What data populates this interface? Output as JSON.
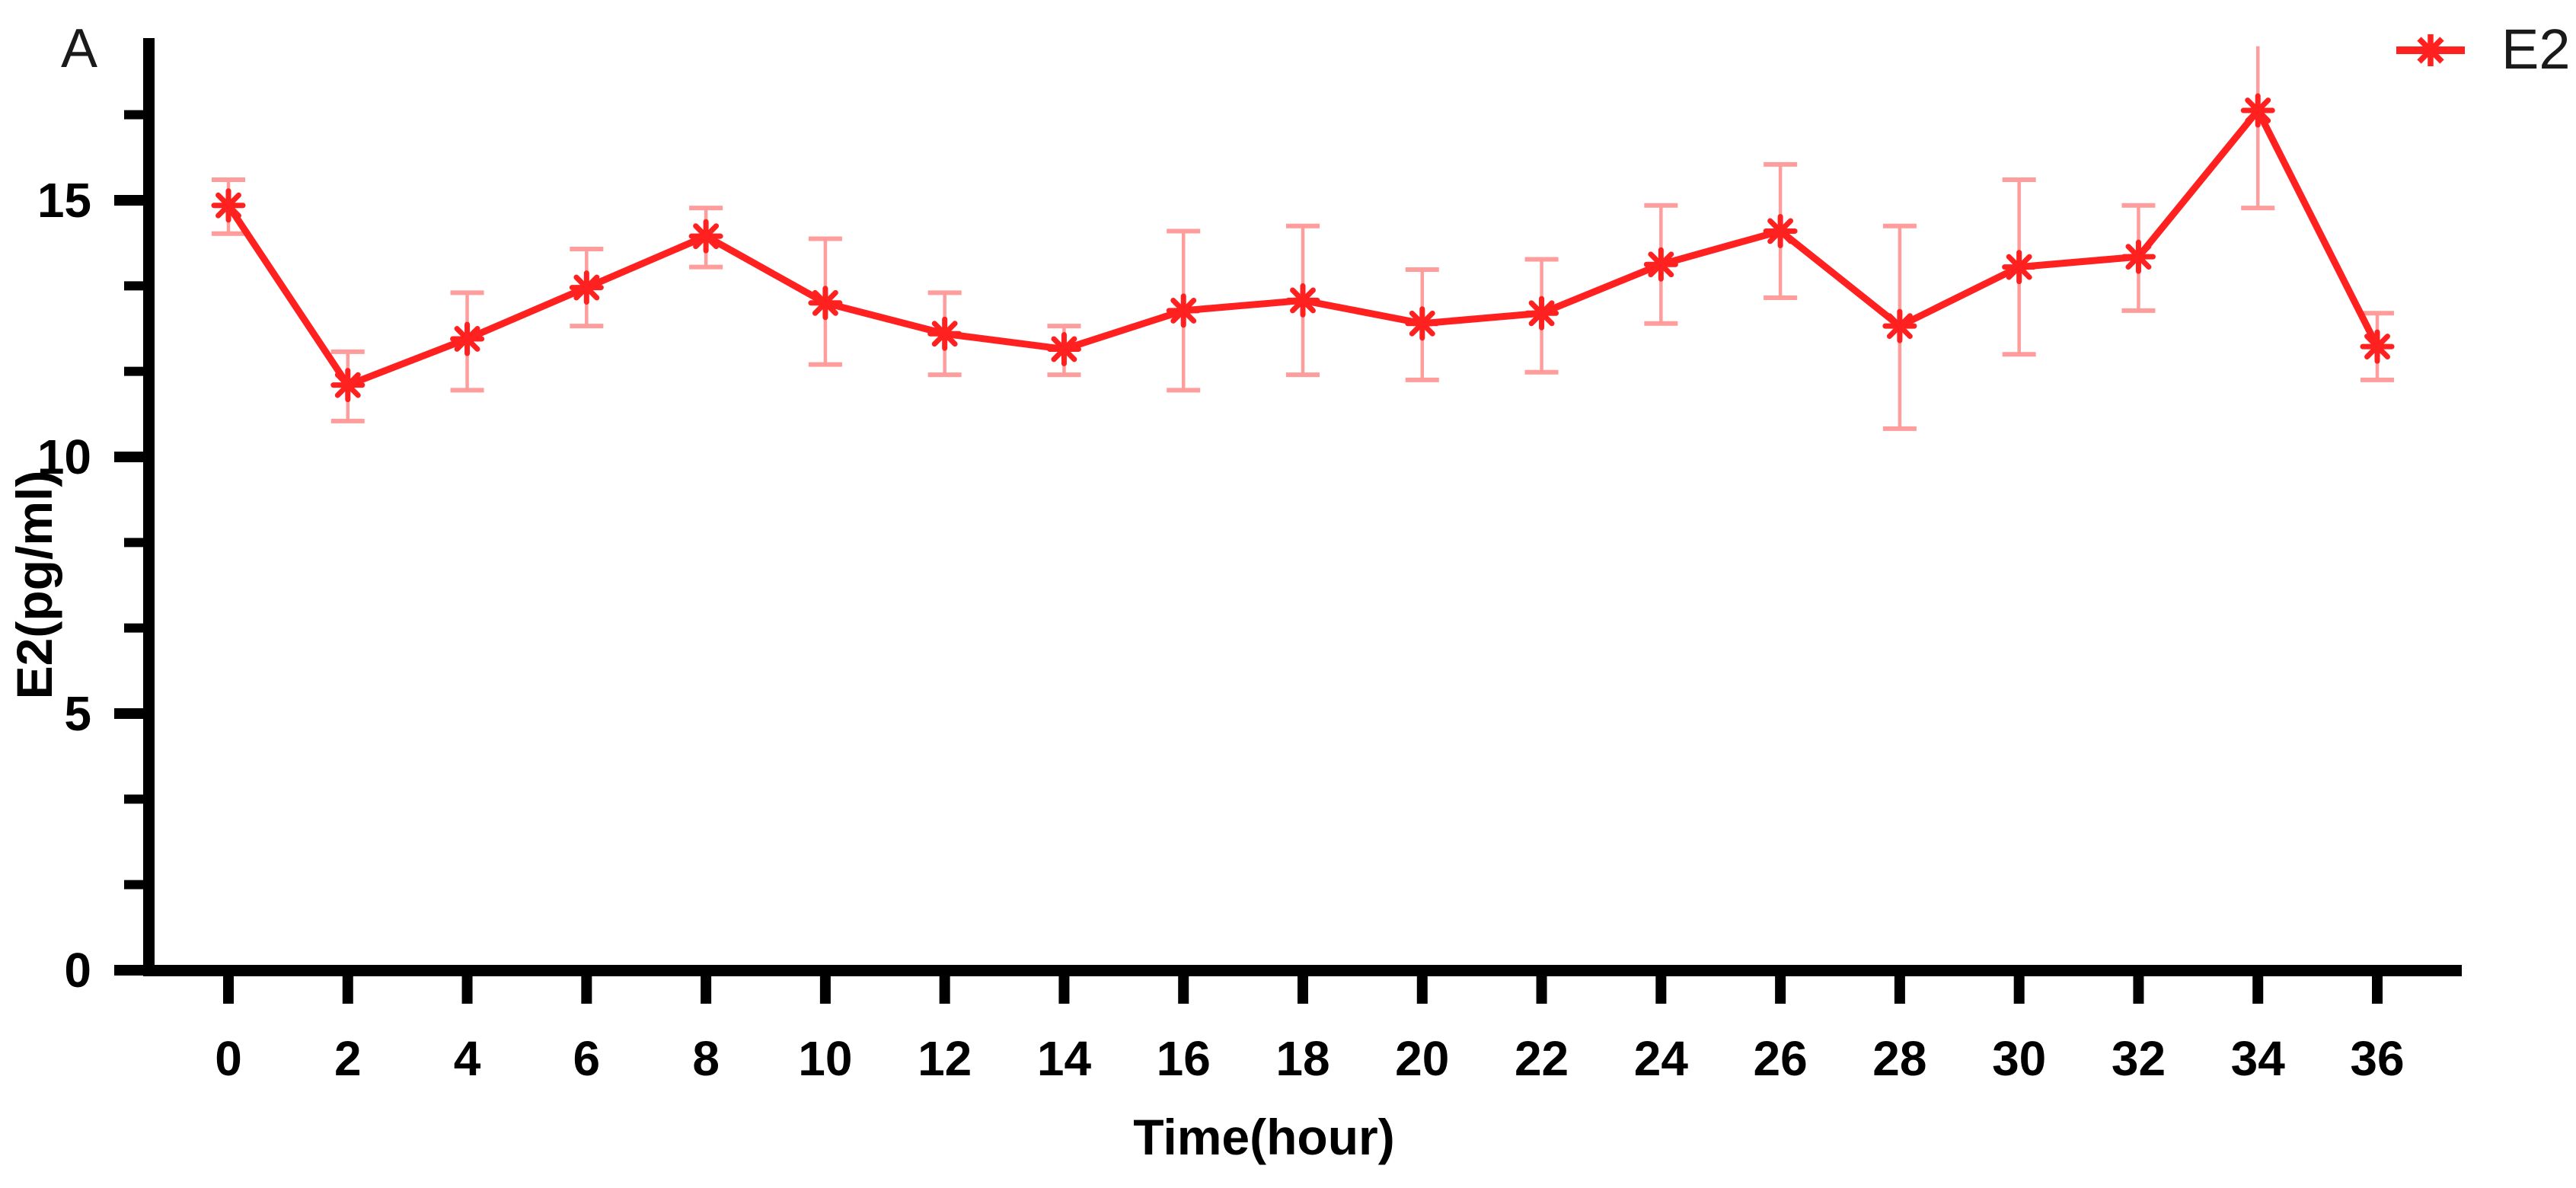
{
  "panel_label": "A",
  "legend": {
    "label": "E2"
  },
  "colors": {
    "series": "#FF2020",
    "error_bar": "#FF9C9C",
    "axis": "#000000",
    "text": "#000000",
    "background": "#FFFFFF"
  },
  "chart_data": {
    "type": "line",
    "title": "",
    "xlabel": "Time(hour)",
    "ylabel": "E2(pg/ml)",
    "legend_entries": [
      "E2"
    ],
    "legend_position": "top-right",
    "grid": false,
    "error_bars": true,
    "marker": "asterisk",
    "xlim": [
      0,
      36
    ],
    "ylim": [
      0,
      18.2
    ],
    "x_ticks": [
      0,
      2,
      4,
      6,
      8,
      10,
      12,
      14,
      16,
      18,
      20,
      22,
      24,
      26,
      28,
      30,
      32,
      34,
      36
    ],
    "y_ticks": [
      0,
      5,
      10,
      15
    ],
    "y_minor_tick_interval": 1.6667,
    "series": [
      {
        "name": "E2",
        "x": [
          0,
          2,
          4,
          6,
          8,
          10,
          12,
          14,
          16,
          18,
          20,
          22,
          24,
          26,
          28,
          30,
          32,
          34,
          36
        ],
        "y": [
          14.9,
          11.4,
          12.3,
          13.3,
          14.3,
          13.0,
          12.4,
          12.1,
          12.85,
          13.05,
          12.6,
          12.8,
          13.75,
          14.4,
          12.55,
          13.7,
          13.9,
          16.75,
          12.15
        ],
        "error_upper": [
          15.4,
          12.05,
          13.2,
          14.05,
          14.85,
          14.25,
          13.2,
          12.55,
          14.4,
          14.5,
          13.65,
          13.85,
          14.9,
          15.7,
          14.5,
          15.4,
          14.9,
          18.0,
          12.8
        ],
        "error_lower": [
          14.35,
          10.7,
          11.3,
          12.55,
          13.7,
          11.8,
          11.6,
          11.6,
          11.3,
          11.6,
          11.5,
          11.65,
          12.6,
          13.1,
          10.55,
          12.0,
          12.85,
          14.85,
          11.5
        ],
        "upper_cap_visible": [
          true,
          true,
          true,
          true,
          true,
          true,
          true,
          true,
          true,
          true,
          true,
          true,
          true,
          true,
          true,
          true,
          true,
          false,
          true
        ]
      }
    ]
  }
}
